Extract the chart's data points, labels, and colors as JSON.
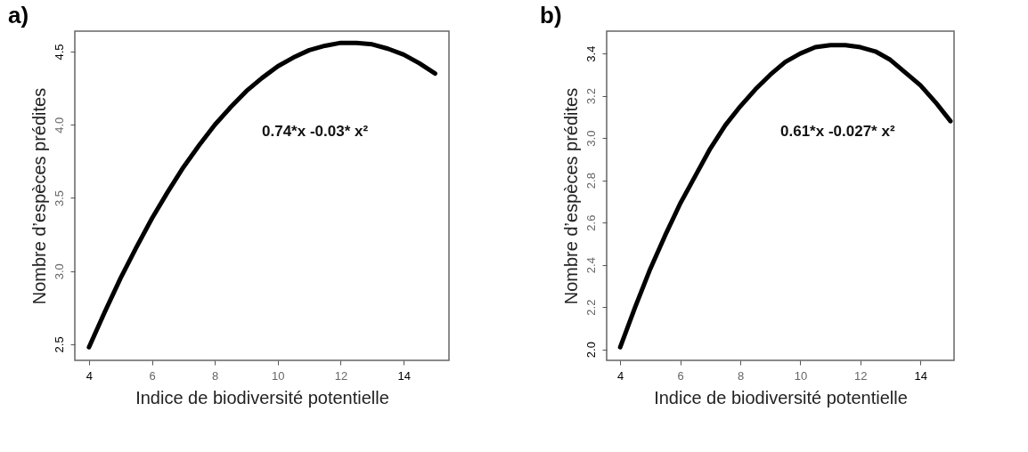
{
  "chart_data": [
    {
      "type": "line",
      "title": "a)",
      "xlabel": "Indice de biodiversité potentielle",
      "ylabel": "Nombre d’espèces prédites",
      "annotations": [
        "0.74*x -0.03* x²"
      ],
      "x": [
        4,
        4.5,
        5,
        5.5,
        6,
        6.5,
        7,
        7.5,
        8,
        8.5,
        9,
        9.5,
        10,
        10.5,
        11,
        11.5,
        12,
        12.5,
        13,
        13.5,
        14,
        14.5,
        15
      ],
      "series": [
        {
          "color": "#000000",
          "values": [
            2.48,
            2.72,
            2.95,
            3.16,
            3.36,
            3.54,
            3.71,
            3.86,
            4.0,
            4.12,
            4.23,
            4.32,
            4.4,
            4.46,
            4.51,
            4.54,
            4.56,
            4.56,
            4.55,
            4.52,
            4.48,
            4.42,
            4.35
          ]
        }
      ],
      "xlim": [
        3.55,
        15.44
      ],
      "ylim": [
        2.39,
        4.64
      ],
      "xticks": [
        4,
        6,
        8,
        10,
        12,
        14
      ],
      "yticks": [
        2.5,
        {
          "value": 3,
          "label": "3.0"
        },
        3.5,
        {
          "value": 4,
          "label": "4.0"
        },
        4.5
      ],
      "grid": false,
      "line_style": "solid"
    },
    {
      "type": "line",
      "title": "b)",
      "xlabel": "Indice de biodiversité potentielle",
      "ylabel": "Nombre d’espèces prédites",
      "annotations": [
        "0.61*x -0.027* x²"
      ],
      "x": [
        4,
        4.5,
        5,
        5.5,
        6,
        6.5,
        7,
        7.5,
        8,
        8.5,
        9,
        9.5,
        10,
        10.5,
        11,
        11.5,
        12,
        12.5,
        13,
        13.5,
        14,
        14.5,
        15
      ],
      "series": [
        {
          "color": "#000000",
          "values": [
            2.01,
            2.2,
            2.38,
            2.54,
            2.69,
            2.82,
            2.95,
            3.06,
            3.15,
            3.23,
            3.3,
            3.36,
            3.4,
            3.43,
            3.44,
            3.44,
            3.43,
            3.41,
            3.37,
            3.31,
            3.25,
            3.17,
            3.08
          ]
        }
      ],
      "xlim": [
        3.55,
        15.12
      ],
      "ylim": [
        1.948,
        3.506
      ],
      "xticks": [
        4,
        6,
        8,
        10,
        12,
        14
      ],
      "yticks": [
        {
          "value": 2,
          "label": "2.0"
        },
        2.2,
        2.4,
        2.6,
        2.8,
        {
          "value": 3,
          "label": "3.0"
        },
        3.2,
        3.4
      ],
      "grid": false,
      "line_style": "solid"
    }
  ]
}
